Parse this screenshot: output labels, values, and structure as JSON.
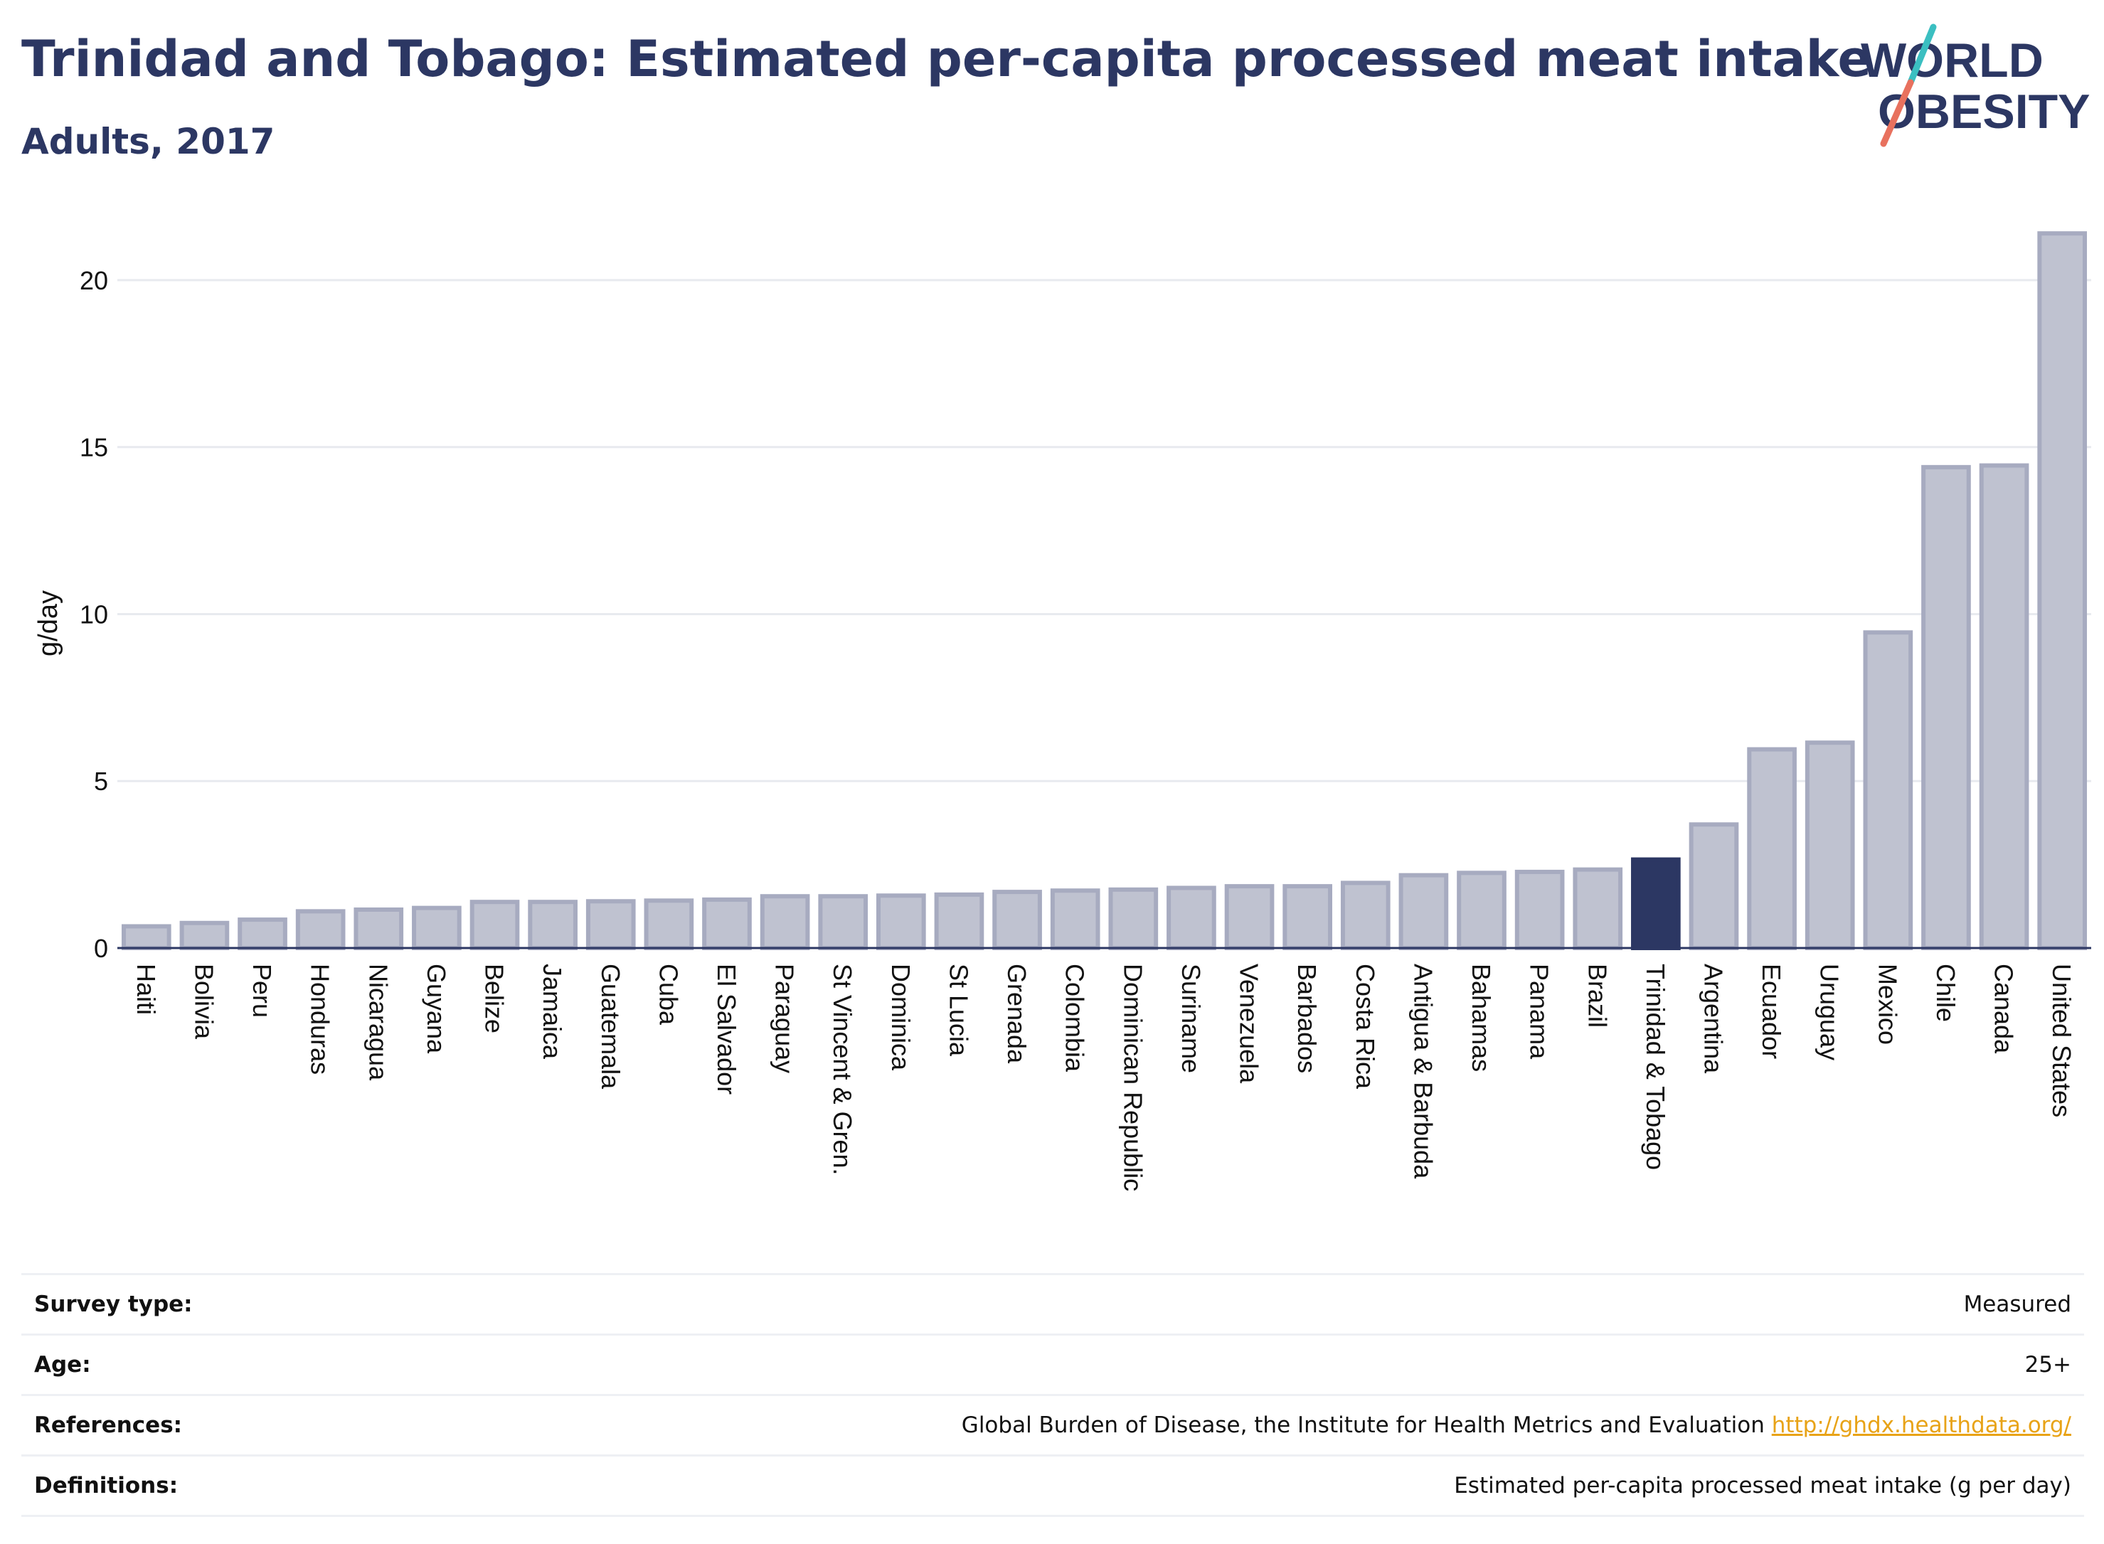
{
  "header": {
    "title": "Trinidad and Tobago: Estimated per-capita processed meat intake",
    "subtitle": "Adults, 2017"
  },
  "logo": {
    "line1": "WORLD",
    "line2": "OBESITY",
    "colors": [
      "#2c3763",
      "#e8715e",
      "#3bbfc1"
    ]
  },
  "colors": {
    "bar": "#bfc2d0",
    "bar_stroke": "#a7abc0",
    "highlight": "#2c3763",
    "grid": "#e8eaef",
    "axis": "#2c3763"
  },
  "chart_data": {
    "type": "bar",
    "ylabel": "g/day",
    "ylim": [
      0,
      22
    ],
    "yticks": [
      0,
      5,
      10,
      15,
      20
    ],
    "highlight": "Trinidad & Tobago",
    "categories": [
      "Haiti",
      "Bolivia",
      "Peru",
      "Honduras",
      "Nicaragua",
      "Guyana",
      "Belize",
      "Jamaica",
      "Guatemala",
      "Cuba",
      "El Salvador",
      "Paraguay",
      "St Vincent & Gren.",
      "Dominica",
      "St Lucia",
      "Grenada",
      "Colombia",
      "Dominican Republic",
      "Suriname",
      "Venezuela",
      "Barbados",
      "Costa Rica",
      "Antigua & Barbuda",
      "Bahamas",
      "Panama",
      "Brazil",
      "Trinidad & Tobago",
      "Argentina",
      "Ecuador",
      "Uruguay",
      "Mexico",
      "Chile",
      "Canada",
      "United States"
    ],
    "values": [
      0.65,
      0.75,
      0.85,
      1.1,
      1.15,
      1.2,
      1.38,
      1.38,
      1.4,
      1.42,
      1.45,
      1.55,
      1.55,
      1.57,
      1.6,
      1.68,
      1.72,
      1.75,
      1.8,
      1.85,
      1.85,
      1.95,
      2.18,
      2.25,
      2.28,
      2.35,
      2.65,
      3.7,
      5.95,
      6.15,
      9.45,
      14.4,
      14.45,
      21.4
    ]
  },
  "info": {
    "rows": [
      {
        "label": "Survey type:",
        "value": "Measured"
      },
      {
        "label": "Age:",
        "value": "25+"
      },
      {
        "label": "References:",
        "value": "Global Burden of Disease, the Institute for Health Metrics and Evaluation",
        "link": "http://ghdx.healthdata.org/"
      },
      {
        "label": "Definitions:",
        "value": "Estimated per-capita processed meat intake (g per day)"
      }
    ]
  }
}
